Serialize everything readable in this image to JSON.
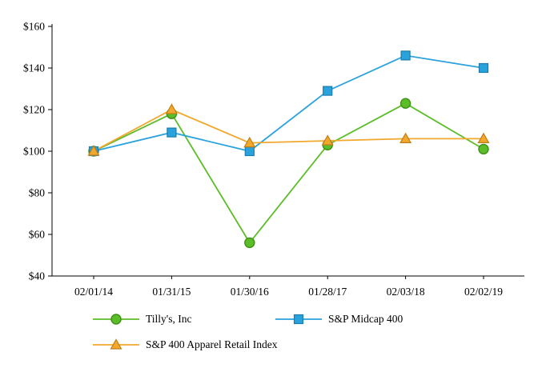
{
  "chart_data": {
    "type": "line",
    "title": "",
    "xlabel": "",
    "ylabel": "",
    "x": [
      "02/01/14",
      "01/31/15",
      "01/30/16",
      "01/28/17",
      "02/03/18",
      "02/02/19"
    ],
    "series": [
      {
        "name": "Tilly's, Inc",
        "marker": "circle",
        "color": "#5bbd28",
        "edge_color": "#3d8f17",
        "values": [
          100,
          118,
          56,
          103,
          123,
          101
        ]
      },
      {
        "name": "S&P Midcap 400",
        "marker": "square",
        "color": "#2aa2dc",
        "edge_color": "#1b7cad",
        "values": [
          100,
          109,
          100,
          129,
          146,
          140
        ]
      },
      {
        "name": "S&P 400 Apparel Retail Index",
        "marker": "triangle",
        "color": "#f2a72e",
        "edge_color": "#c07f14",
        "values": [
          100,
          120,
          104,
          105,
          106,
          106
        ]
      }
    ],
    "ylim": [
      40,
      160
    ],
    "ytick_step": 20,
    "ytick_labels": [
      "$40",
      "$60",
      "$80",
      "$100",
      "$120",
      "$140",
      "$160"
    ],
    "grid": false,
    "legend_position": "bottom",
    "axis_color": "#000000"
  }
}
